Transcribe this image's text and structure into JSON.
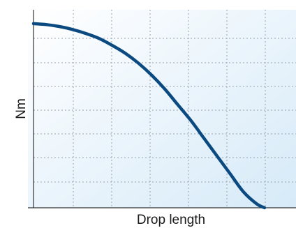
{
  "chart_data": {
    "type": "line",
    "xlabel": "Drop length",
    "ylabel": "Nm",
    "title": "",
    "xlim": [
      0,
      1
    ],
    "ylim": [
      0,
      1
    ],
    "grid": true,
    "x_ticks_shown": false,
    "y_ticks_shown": false,
    "series": [
      {
        "color": "#0b4a80",
        "x": [
          0,
          0.05,
          0.1,
          0.15,
          0.2,
          0.25,
          0.3,
          0.35,
          0.4,
          0.45,
          0.5,
          0.55,
          0.6,
          0.65,
          0.7,
          0.75,
          0.8,
          0.85,
          0.88
        ],
        "y": [
          0.93,
          0.925,
          0.915,
          0.9,
          0.88,
          0.855,
          0.82,
          0.78,
          0.73,
          0.67,
          0.6,
          0.52,
          0.44,
          0.35,
          0.26,
          0.17,
          0.08,
          0.02,
          0.0
        ]
      }
    ]
  },
  "colors": {
    "background_gradient_start": "#ffffff",
    "background_gradient_end": "#d6eaf8",
    "curve": "#0b4a80",
    "grid": "#9aa3ab",
    "axis": "#333333"
  }
}
